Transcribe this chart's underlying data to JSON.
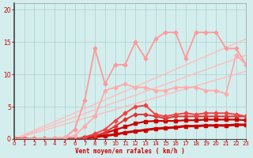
{
  "bg_color": "#d4eeee",
  "grid_color": "#aacccc",
  "xlabel": "Vent moyen/en rafales ( km/h )",
  "xlim": [
    0,
    23
  ],
  "ylim": [
    0,
    21
  ],
  "yticks": [
    0,
    5,
    10,
    15,
    20
  ],
  "xticks": [
    0,
    1,
    2,
    3,
    4,
    5,
    6,
    7,
    8,
    9,
    10,
    11,
    12,
    13,
    14,
    15,
    16,
    17,
    18,
    19,
    20,
    21,
    22,
    23
  ],
  "lines": [
    {
      "x": [
        0,
        23
      ],
      "y": [
        0,
        10.5
      ],
      "color": "#ffbbbb",
      "lw": 1.0,
      "marker": null,
      "ms": 0,
      "ls": "-"
    },
    {
      "x": [
        0,
        23
      ],
      "y": [
        0,
        13.0
      ],
      "color": "#ffbbbb",
      "lw": 1.0,
      "marker": null,
      "ms": 0,
      "ls": "-"
    },
    {
      "x": [
        0,
        23
      ],
      "y": [
        0,
        15.5
      ],
      "color": "#ffbbbb",
      "lw": 1.0,
      "marker": null,
      "ms": 0,
      "ls": "-"
    },
    {
      "x": [
        0,
        1,
        2,
        3,
        4,
        5,
        6,
        7,
        8,
        9,
        10,
        11,
        12,
        13,
        14,
        15,
        16,
        17,
        18,
        19,
        20,
        21,
        22,
        23
      ],
      "y": [
        0,
        0,
        0,
        0,
        0,
        0,
        0,
        0.1,
        0.3,
        0.5,
        0.7,
        1.0,
        1.2,
        1.4,
        1.6,
        1.7,
        1.8,
        2.0,
        2.0,
        2.1,
        2.1,
        2.1,
        2.2,
        2.2
      ],
      "color": "#cc0000",
      "lw": 2.2,
      "marker": "s",
      "ms": 2.5,
      "ls": "-"
    },
    {
      "x": [
        0,
        1,
        2,
        3,
        4,
        5,
        6,
        7,
        8,
        9,
        10,
        11,
        12,
        13,
        14,
        15,
        16,
        17,
        18,
        19,
        20,
        21,
        22,
        23
      ],
      "y": [
        0,
        0,
        0,
        0,
        0,
        0,
        0,
        0.2,
        0.5,
        0.9,
        1.4,
        1.9,
        2.4,
        2.7,
        2.8,
        2.8,
        2.8,
        2.9,
        2.9,
        3.0,
        3.0,
        3.0,
        3.0,
        2.9
      ],
      "color": "#cc0000",
      "lw": 1.6,
      "marker": "s",
      "ms": 2.5,
      "ls": "-"
    },
    {
      "x": [
        0,
        1,
        2,
        3,
        4,
        5,
        6,
        7,
        8,
        9,
        10,
        11,
        12,
        13,
        14,
        15,
        16,
        17,
        18,
        19,
        20,
        21,
        22,
        23
      ],
      "y": [
        0,
        0,
        0,
        0,
        0,
        0,
        0,
        0.2,
        0.5,
        1.0,
        2.0,
        3.0,
        3.8,
        3.8,
        3.5,
        3.2,
        3.5,
        3.5,
        3.5,
        3.5,
        3.5,
        3.5,
        3.5,
        3.5
      ],
      "color": "#dd3333",
      "lw": 1.4,
      "marker": "D",
      "ms": 2.5,
      "ls": "-"
    },
    {
      "x": [
        0,
        1,
        2,
        3,
        4,
        5,
        6,
        7,
        8,
        9,
        10,
        11,
        12,
        13,
        14,
        15,
        16,
        17,
        18,
        19,
        20,
        21,
        22,
        23
      ],
      "y": [
        0,
        0,
        0,
        0,
        0,
        0,
        0,
        0.3,
        0.8,
        1.5,
        2.8,
        4.0,
        5.0,
        5.2,
        3.8,
        3.5,
        3.8,
        4.0,
        3.8,
        4.0,
        4.0,
        4.0,
        3.8,
        3.5
      ],
      "color": "#ee4444",
      "lw": 1.4,
      "marker": "D",
      "ms": 2.5,
      "ls": "-"
    },
    {
      "x": [
        0,
        5,
        6,
        7,
        8,
        9,
        10,
        11,
        12,
        13,
        14,
        15,
        16,
        17,
        18,
        19,
        20,
        21,
        22,
        23
      ],
      "y": [
        0,
        0.2,
        1.5,
        6.0,
        14.0,
        8.5,
        11.5,
        11.5,
        15.0,
        12.5,
        15.5,
        16.5,
        16.5,
        12.5,
        16.5,
        16.5,
        16.5,
        14.0,
        14.0,
        11.5
      ],
      "color": "#ff9999",
      "lw": 1.3,
      "marker": "D",
      "ms": 2.5,
      "ls": "-"
    },
    {
      "x": [
        0,
        5,
        6,
        7,
        8,
        9,
        10,
        11,
        12,
        13,
        14,
        15,
        16,
        17,
        18,
        19,
        20,
        21,
        22,
        23
      ],
      "y": [
        0,
        0.2,
        0.5,
        2.0,
        3.5,
        7.5,
        8.0,
        8.5,
        8.0,
        8.0,
        7.5,
        7.5,
        8.0,
        8.0,
        8.0,
        7.5,
        7.5,
        7.0,
        13.0,
        11.5
      ],
      "color": "#ffaaaa",
      "lw": 1.3,
      "marker": "D",
      "ms": 2.5,
      "ls": "-"
    }
  ]
}
